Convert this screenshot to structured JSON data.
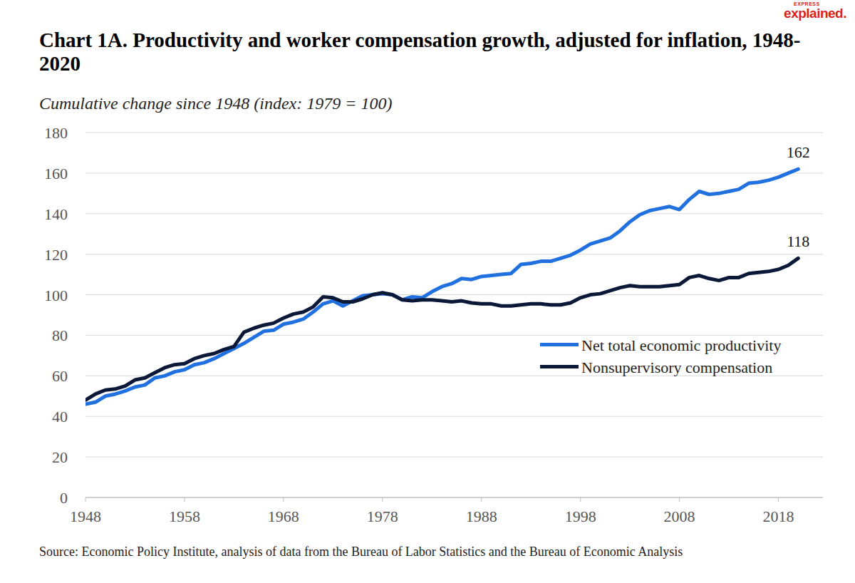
{
  "chart_data": {
    "type": "line",
    "title": "Chart 1A. Productivity and worker compensation growth, adjusted for inflation, 1948-2020",
    "subtitle": "Cumulative change since 1948 (index: 1979 = 100)",
    "source": "Source: Economic Policy Institute, analysis of data from the Bureau of Labor Statistics and the Bureau of Economic Analysis",
    "logo": {
      "small": "EXPRESS",
      "main": "explained."
    },
    "x": [
      1948,
      1949,
      1950,
      1951,
      1952,
      1953,
      1954,
      1955,
      1956,
      1957,
      1958,
      1959,
      1960,
      1961,
      1962,
      1963,
      1964,
      1965,
      1966,
      1967,
      1968,
      1969,
      1970,
      1971,
      1972,
      1973,
      1974,
      1975,
      1976,
      1977,
      1978,
      1979,
      1980,
      1981,
      1982,
      1983,
      1984,
      1985,
      1986,
      1987,
      1988,
      1989,
      1990,
      1991,
      1992,
      1993,
      1994,
      1995,
      1996,
      1997,
      1998,
      1999,
      2000,
      2001,
      2002,
      2003,
      2004,
      2005,
      2006,
      2007,
      2008,
      2009,
      2010,
      2011,
      2012,
      2013,
      2014,
      2015,
      2016,
      2017,
      2018,
      2019,
      2020
    ],
    "series": [
      {
        "name": "Net total economic productivity",
        "color": "#2170e0",
        "values": [
          46,
          47,
          50,
          51,
          52.5,
          54.5,
          55.5,
          59,
          60,
          62,
          63,
          65.5,
          66.5,
          68.5,
          71,
          73.5,
          76,
          79,
          82,
          82.5,
          85.5,
          86.5,
          88,
          91.5,
          95.5,
          97,
          94.5,
          97,
          99.5,
          100,
          100.5,
          100,
          97.5,
          99,
          98.5,
          101.5,
          104,
          105.5,
          108,
          107.5,
          109,
          109.5,
          110,
          110.5,
          115,
          115.5,
          116.5,
          116.5,
          118,
          119.5,
          122,
          125,
          126.5,
          128,
          131.5,
          136,
          139.5,
          141.5,
          142.5,
          143.5,
          142,
          147,
          151,
          149.5,
          150,
          151,
          152,
          155,
          155.5,
          156.5,
          158,
          160,
          162
        ]
      },
      {
        "name": "Nonsupervisory compensation",
        "color": "#0c1838",
        "values": [
          48,
          51,
          53,
          53.5,
          55,
          58,
          59,
          61.5,
          64,
          65.5,
          66,
          68.5,
          70,
          71,
          73,
          74.5,
          81.5,
          83.5,
          85,
          86,
          88.5,
          90.5,
          91.5,
          94,
          99,
          98.5,
          96.5,
          96.5,
          98,
          100,
          101,
          100,
          97.5,
          97,
          97.5,
          97.5,
          97,
          96.5,
          97,
          96,
          95.5,
          95.5,
          94.5,
          94.5,
          95,
          95.5,
          95.5,
          95,
          95,
          96,
          98.5,
          100,
          100.5,
          102,
          103.5,
          104.5,
          104,
          104,
          104,
          104.5,
          105,
          108.5,
          109.5,
          108,
          107,
          108.5,
          108.5,
          110.5,
          111,
          111.5,
          112.5,
          114.5,
          118
        ]
      }
    ],
    "annotations": [
      {
        "text": "162",
        "x": 2020,
        "y": 162
      },
      {
        "text": "118",
        "x": 2020,
        "y": 118
      }
    ],
    "xlim": [
      1948,
      2022.5
    ],
    "xticks": [
      1948,
      1958,
      1968,
      1978,
      1988,
      1998,
      2008,
      2018
    ],
    "ylim": [
      0,
      180
    ],
    "yticks": [
      0,
      20,
      40,
      60,
      80,
      100,
      120,
      140,
      160,
      180
    ],
    "grid": true,
    "legend": "right"
  }
}
